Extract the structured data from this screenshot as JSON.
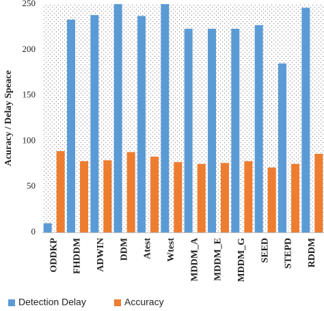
{
  "chart_data": {
    "type": "bar",
    "title": "",
    "xlabel": "",
    "ylabel": "Acuracy / Delay Speace",
    "ylim": [
      0,
      250
    ],
    "yticks": [
      0,
      50,
      100,
      150,
      200,
      250
    ],
    "grid": false,
    "legend_position": "bottom",
    "categories": [
      "ODDKP",
      "FHDDM",
      "ADWIN",
      "DDM",
      "Atest",
      "Wtest",
      "MDDM_A",
      "MDDM_E",
      "MDDM_G",
      "SEED",
      "STEPD",
      "RDDM"
    ],
    "series": [
      {
        "name": "Detection Delay",
        "color": "#5b9bd5",
        "values": [
          10,
          233,
          238,
          250,
          237,
          250,
          223,
          223,
          223,
          227,
          185,
          246
        ]
      },
      {
        "name": "Accuracy",
        "color": "#ed7d31",
        "values": [
          89,
          78,
          79,
          88,
          83,
          77,
          75,
          76,
          78,
          71,
          75,
          86
        ]
      }
    ]
  }
}
